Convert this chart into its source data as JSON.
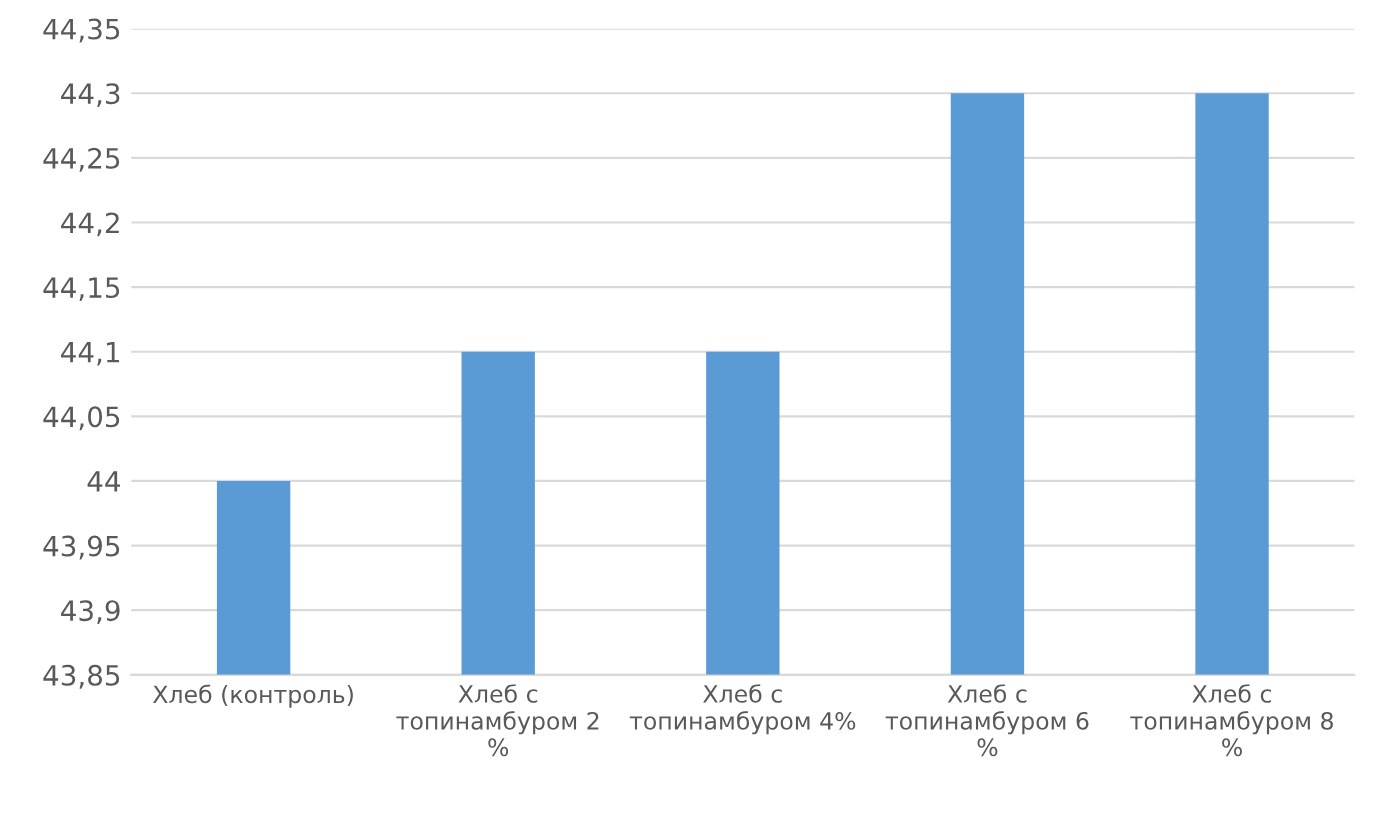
{
  "chart_data": {
    "type": "bar",
    "categories": [
      "Хлеб (контроль)",
      "Хлеб с топинамбуром 2 %",
      "Хлеб с топинамбуром 4%",
      "Хлеб с топинамбуром 6 %",
      "Хлеб с топинамбуром 8 %"
    ],
    "values": [
      44.0,
      44.1,
      44.1,
      44.3,
      44.3
    ],
    "color": "#5b9bd5",
    "ylim": [
      43.85,
      44.35
    ],
    "yticks": [
      {
        "value": 43.85,
        "label": "43,85"
      },
      {
        "value": 43.9,
        "label": "43,9"
      },
      {
        "value": 43.95,
        "label": "43,95"
      },
      {
        "value": 44,
        "label": "44"
      },
      {
        "value": 44.05,
        "label": "44,05"
      },
      {
        "value": 44.1,
        "label": "44,1"
      },
      {
        "value": 44.15,
        "label": "44,15"
      },
      {
        "value": 44.2,
        "label": "44,2"
      },
      {
        "value": 44.25,
        "label": "44,25"
      },
      {
        "value": 44.3,
        "label": "44,3"
      },
      {
        "value": 44.35,
        "label": "44,35"
      }
    ],
    "grid": "y"
  }
}
